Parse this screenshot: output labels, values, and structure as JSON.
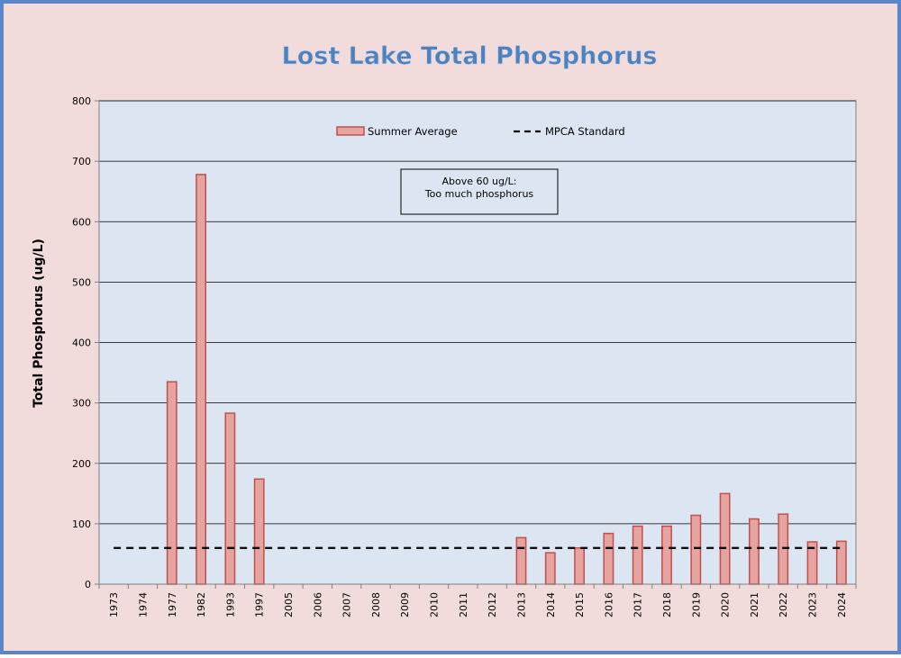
{
  "colors": {
    "background": "#f2dcdb",
    "border": "#5b86c8",
    "plot_area": "#dce6f2",
    "bar_fill": "#e6a3a0",
    "bar_stroke": "#c0504d",
    "title": "#4f81bd",
    "reference_line": "#000000"
  },
  "chart_data": {
    "type": "bar",
    "title": "Lost Lake Total Phosphorus",
    "xlabel": "",
    "ylabel": "Total Phosphorus (ug/L)",
    "ylim": [
      0,
      800
    ],
    "yticks": [
      0,
      100,
      200,
      300,
      400,
      500,
      600,
      700,
      800
    ],
    "grid": true,
    "legend_position": "top-center",
    "categories": [
      "1973",
      "1974",
      "1977",
      "1982",
      "1993",
      "1997",
      "2005",
      "2006",
      "2007",
      "2008",
      "2009",
      "2010",
      "2011",
      "2012",
      "2013",
      "2014",
      "2015",
      "2016",
      "2017",
      "2018",
      "2019",
      "2020",
      "2021",
      "2022",
      "2023",
      "2024"
    ],
    "series": [
      {
        "name": "Summer Average",
        "type": "bar",
        "values": [
          null,
          null,
          335,
          678,
          283,
          174,
          null,
          null,
          null,
          null,
          null,
          null,
          null,
          null,
          77,
          52,
          60,
          84,
          96,
          96,
          114,
          150,
          108,
          116,
          70,
          71
        ]
      },
      {
        "name": "MPCA Standard",
        "type": "line",
        "style": "dashed",
        "value": 60
      }
    ],
    "annotations": [
      "Above 60 ug/L:",
      "Too much phosphorus"
    ]
  }
}
